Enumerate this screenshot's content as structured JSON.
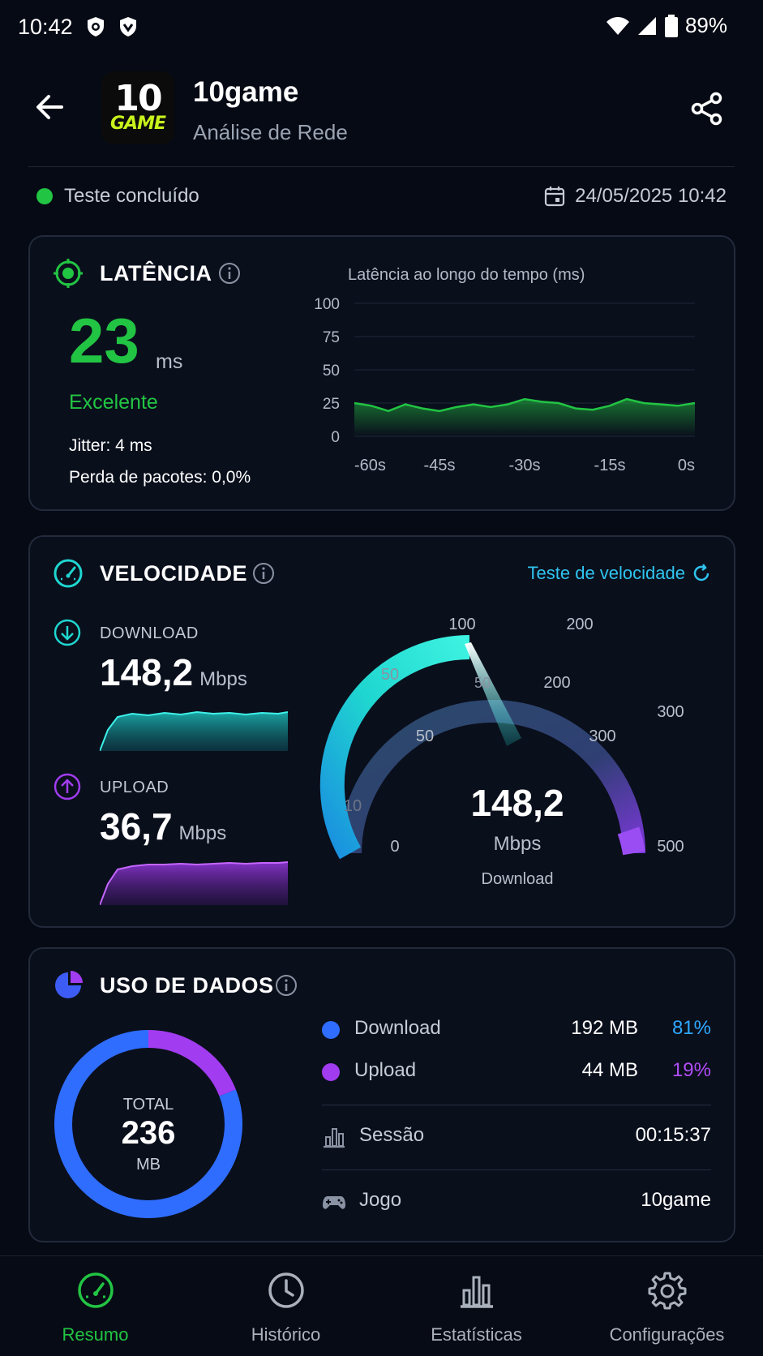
{
  "status_bar": {
    "time": "10:42",
    "battery": "89%"
  },
  "header": {
    "app_name": "10game",
    "subtitle": "Análise de Rede",
    "logo_top": "10",
    "logo_bottom": "GAME"
  },
  "test": {
    "status": "Teste concluído",
    "datetime": "24/05/2025 10:42"
  },
  "latency": {
    "title": "LATÊNCIA",
    "value": "23",
    "unit": "ms",
    "rating": "Excelente",
    "jitter": "Jitter: 4 ms",
    "packet_loss": "Perda de pacotes: 0,0%",
    "chart_title": "Latência ao longo do tempo (ms)"
  },
  "chart_data": {
    "type": "area",
    "title": "Latência ao longo do tempo (ms)",
    "xlabel": "",
    "ylabel": "",
    "ylim": [
      0,
      100
    ],
    "yticks": [
      "100",
      "75",
      "50",
      "25",
      "0"
    ],
    "xticks": [
      "-60s",
      "-45s",
      "-30s",
      "-15s",
      "0s"
    ],
    "x": [
      -60,
      -57,
      -54,
      -51,
      -48,
      -45,
      -42,
      -39,
      -36,
      -33,
      -30,
      -27,
      -24,
      -21,
      -18,
      -15,
      -12,
      -9,
      -6,
      -3,
      0
    ],
    "values": [
      25,
      23,
      19,
      24,
      21,
      19,
      22,
      24,
      22,
      24,
      28,
      26,
      25,
      21,
      20,
      23,
      28,
      25,
      24,
      23,
      25
    ],
    "color": "#22c443",
    "grid": true
  },
  "speed": {
    "title": "VELOCIDADE",
    "test_link": "Teste de velocidade",
    "download_label": "DOWNLOAD",
    "download_value": "148,2",
    "upload_label": "UPLOAD",
    "upload_value": "36,7",
    "unit": "Mbps",
    "gauge_value": "148,2",
    "gauge_unit": "Mbps",
    "gauge_caption": "Download",
    "gauge_reading": 148.2,
    "gauge_outer_labels": [
      "100",
      "200",
      "300",
      "500",
      "0"
    ],
    "gauge_inner_labels": [
      "50",
      "200",
      "300",
      "50"
    ],
    "gauge_misc_labels": [
      "50",
      "10"
    ],
    "download_color": "#1fd6d0",
    "upload_color": "#a23cf0"
  },
  "data_usage": {
    "title": "USO DE DADOS",
    "total_label": "TOTAL",
    "total_value": "236",
    "total_unit": "MB",
    "download": {
      "name": "Download",
      "size": "192 MB",
      "pct": "81%",
      "color": "#2f6dff",
      "fraction": 0.81
    },
    "upload": {
      "name": "Upload",
      "size": "44 MB",
      "pct": "19%",
      "color": "#a23cf0",
      "fraction": 0.19
    },
    "session_label": "Sessão",
    "session_value": "00:15:37",
    "game_label": "Jogo",
    "game_value": "10game"
  },
  "nav": {
    "items": [
      {
        "label": "Resumo",
        "icon": "speedometer-icon",
        "active": true
      },
      {
        "label": "Histórico",
        "icon": "clock-icon",
        "active": false
      },
      {
        "label": "Estatísticas",
        "icon": "bar-chart-icon",
        "active": false
      },
      {
        "label": "Configurações",
        "icon": "gear-icon",
        "active": false
      }
    ],
    "active_color": "#22c443"
  }
}
